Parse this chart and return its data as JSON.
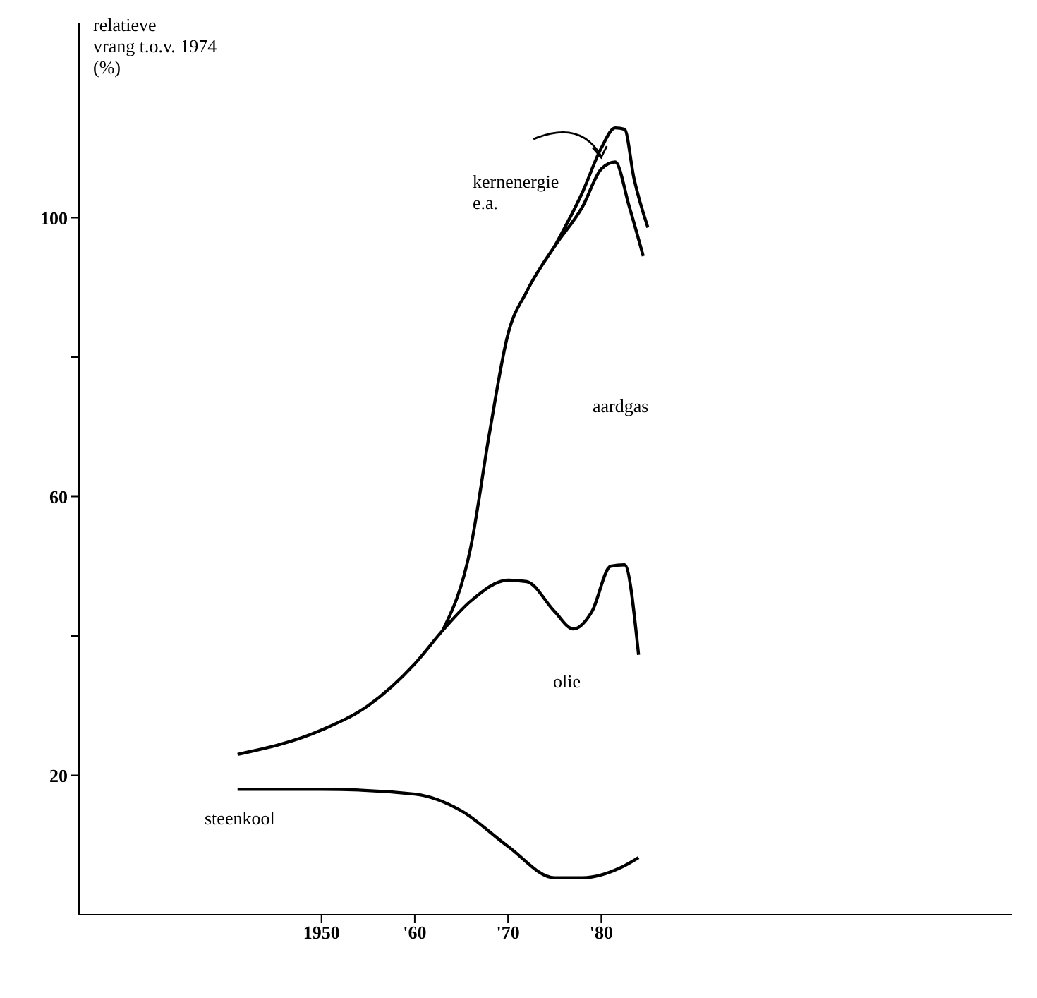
{
  "chart_data": {
    "type": "line",
    "ylabel": "relatieve\nvrang t.o.v. 1974\n(%)",
    "xlim": [
      1924,
      2024
    ],
    "xticks": [
      {
        "value": 1950,
        "label": "1950"
      },
      {
        "value": 1960,
        "label": "'60"
      },
      {
        "value": 1970,
        "label": "'70"
      },
      {
        "value": 1980,
        "label": "'80"
      }
    ],
    "ylim": [
      0,
      128
    ],
    "yticks": [
      20,
      {
        "value": 40,
        "label": null
      },
      60,
      {
        "value": 80,
        "label": null
      },
      100
    ],
    "grid": false,
    "legend": false,
    "marker": "none",
    "line_style": "solid",
    "series": [
      {
        "color": "#000000",
        "x": [
          1941,
          1950,
          1960,
          1965,
          1970,
          1975,
          1978,
          1982,
          1984
        ],
        "values": [
          18,
          18,
          17.3,
          14.9,
          9.8,
          5.3,
          5.3,
          6.7,
          8.2
        ]
      },
      {
        "color": "#000000",
        "x": [
          1941,
          1950,
          1955,
          1960,
          1963,
          1966,
          1970,
          1972,
          1975,
          1977,
          1979,
          1981,
          1982.5,
          1984
        ],
        "values": [
          23,
          26.5,
          30,
          36,
          40.8,
          45,
          48,
          47.8,
          43.5,
          41,
          43.5,
          50,
          50.2,
          37.3
        ]
      },
      {
        "color": "#000000",
        "x": [
          1963,
          1966,
          1968,
          1970,
          1972,
          1975,
          1978,
          1980,
          1981.5,
          1983,
          1984.5
        ],
        "values": [
          40.8,
          52.7,
          69,
          83.3,
          89.4,
          95.9,
          101.6,
          107,
          108,
          101.6,
          94.5
        ]
      },
      {
        "color": "#000000",
        "x": [
          1975,
          1978,
          1980,
          1981.5,
          1982.5,
          1983.5,
          1985
        ],
        "values": [
          95.9,
          103.7,
          110,
          112.9,
          112.7,
          105.7,
          98.6
        ]
      }
    ],
    "annotations": [
      "kernenergie\ne.a.",
      "aardgas",
      "olie",
      "steenkool"
    ]
  }
}
